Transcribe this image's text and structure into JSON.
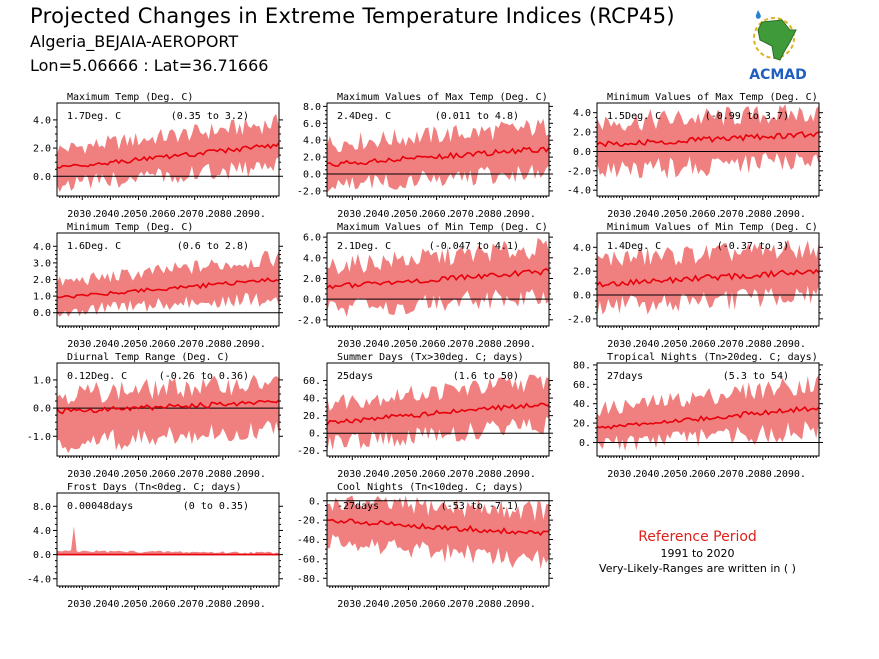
{
  "header": {
    "title": "Projected Changes in Extreme Temperature Indices (RCP45)",
    "station": "Algeria_BEJAIA-AEROPORT",
    "coords": "Lon=5.06666 : Lat=36.71666"
  },
  "logo": {
    "text": "ACMAD",
    "icon": "africa-map-logo"
  },
  "colors": {
    "band": "#f08080",
    "line": "#e8000b",
    "zero": "#000000",
    "ref_title": "#e0201b"
  },
  "reference": {
    "title": "Reference Period",
    "years": "1991 to 2020",
    "note": "Very-Likely-Ranges are written in ( )"
  },
  "chart_data": [
    {
      "type": "area",
      "title": "Maximum Temp (Deg. C)",
      "value_label": "1.7Deg. C",
      "range_label": "(0.35 to 3.2)",
      "ylim": [
        -1.4,
        5.2
      ],
      "yticks": [
        0,
        2,
        4
      ],
      "ytick_labels": [
        "0.0",
        "2.0",
        "4.0"
      ],
      "x_range": [
        2021,
        2100
      ],
      "xtick_labels": [
        "2030.",
        "2040.",
        "2050.",
        "2060.",
        "2070.",
        "2080.",
        "2090."
      ],
      "series": [
        {
          "mean": [
            0.6,
            2.2
          ],
          "low": [
            -0.6,
            0.7
          ],
          "high": [
            1.9,
            3.8
          ]
        }
      ]
    },
    {
      "type": "area",
      "title": "Maximum Values of Max Temp (Deg. C)",
      "value_label": "2.4Deg. C",
      "range_label": "(0.011 to 4.8)",
      "ylim": [
        -2.6,
        8.4
      ],
      "yticks": [
        -2,
        0,
        2,
        4,
        6,
        8
      ],
      "ytick_labels": [
        "-2.0",
        "0.0",
        "2.0",
        "4.0",
        "6.0",
        "8.0"
      ],
      "x_range": [
        2021,
        2100
      ],
      "xtick_labels": [
        "2030.",
        "2040.",
        "2050.",
        "2060.",
        "2070.",
        "2080.",
        "2090."
      ],
      "series": [
        {
          "mean": [
            1.1,
            3.0
          ],
          "low": [
            -1.4,
            0.2
          ],
          "high": [
            3.6,
            5.6
          ]
        }
      ]
    },
    {
      "type": "area",
      "title": "Minimum Values of Max Temp (Deg. C)",
      "value_label": "1.5Deg. C",
      "range_label": "(-0.99 to 3.7)",
      "ylim": [
        -4.6,
        5.0
      ],
      "yticks": [
        -4,
        -2,
        0,
        2,
        4
      ],
      "ytick_labels": [
        "-4.0",
        "-2.0",
        "0.0",
        "2.0",
        "4.0"
      ],
      "x_range": [
        2021,
        2100
      ],
      "xtick_labels": [
        "2030.",
        "2040.",
        "2050.",
        "2060.",
        "2070.",
        "2080.",
        "2090."
      ],
      "series": [
        {
          "mean": [
            0.7,
            1.8
          ],
          "low": [
            -2.2,
            -0.8
          ],
          "high": [
            3.0,
            4.0
          ]
        }
      ]
    },
    {
      "type": "area",
      "title": "Minimum Temp (Deg. C)",
      "value_label": "1.6Deg. C",
      "range_label": "(0.6 to 2.8)",
      "ylim": [
        -0.8,
        4.8
      ],
      "yticks": [
        0,
        1,
        2,
        3,
        4
      ],
      "ytick_labels": [
        "0.0",
        "1.0",
        "2.0",
        "3.0",
        "4.0"
      ],
      "x_range": [
        2021,
        2100
      ],
      "xtick_labels": [
        "2030.",
        "2040.",
        "2050.",
        "2060.",
        "2070.",
        "2080.",
        "2090."
      ],
      "series": [
        {
          "mean": [
            0.9,
            2.0
          ],
          "low": [
            0.1,
            0.9
          ],
          "high": [
            1.8,
            3.3
          ]
        }
      ]
    },
    {
      "type": "area",
      "title": "Maximum Values of Min Temp (Deg. C)",
      "value_label": "2.1Deg. C",
      "range_label": "(-0.047 to 4.1)",
      "ylim": [
        -2.6,
        6.4
      ],
      "yticks": [
        -2,
        0,
        2,
        4,
        6
      ],
      "ytick_labels": [
        "-2.0",
        "0.0",
        "2.0",
        "4.0",
        "6.0"
      ],
      "x_range": [
        2021,
        2100
      ],
      "xtick_labels": [
        "2030.",
        "2040.",
        "2050.",
        "2060.",
        "2070.",
        "2080.",
        "2090."
      ],
      "series": [
        {
          "mean": [
            1.2,
            2.7
          ],
          "low": [
            -1.0,
            0.3
          ],
          "high": [
            3.2,
            5.0
          ]
        }
      ]
    },
    {
      "type": "area",
      "title": "Minimum Values of Min Temp (Deg. C)",
      "value_label": "1.4Deg. C",
      "range_label": "(-0.37 to 3)",
      "ylim": [
        -2.6,
        5.2
      ],
      "yticks": [
        -2,
        0,
        2,
        4
      ],
      "ytick_labels": [
        "-2.0",
        "0.0",
        "2.0",
        "4.0"
      ],
      "x_range": [
        2021,
        2100
      ],
      "xtick_labels": [
        "2030.",
        "2040.",
        "2050.",
        "2060.",
        "2070.",
        "2080.",
        "2090."
      ],
      "series": [
        {
          "mean": [
            0.9,
            2.0
          ],
          "low": [
            -1.0,
            0.0
          ],
          "high": [
            3.0,
            3.9
          ]
        }
      ]
    },
    {
      "type": "area",
      "title": "Diurnal Temp Range (Deg. C)",
      "value_label": "0.12Deg. C",
      "range_label": "(-0.26 to 0.36)",
      "ylim": [
        -1.7,
        1.6
      ],
      "yticks": [
        -1,
        0,
        1
      ],
      "ytick_labels": [
        "-1.0",
        "0.0",
        "1.0"
      ],
      "x_range": [
        2021,
        2100
      ],
      "xtick_labels": [
        "2030.",
        "2040.",
        "2050.",
        "2060.",
        "2070.",
        "2080.",
        "2090."
      ],
      "series": [
        {
          "mean": [
            -0.1,
            0.2
          ],
          "low": [
            -1.3,
            -0.7
          ],
          "high": [
            0.5,
            0.9
          ]
        }
      ]
    },
    {
      "type": "area",
      "title": "Summer Days (Tx>30deg. C; days)",
      "value_label": "25days",
      "range_label": "(1.6 to 50)",
      "ylim": [
        -26,
        80
      ],
      "yticks": [
        -20,
        0,
        20,
        40,
        60
      ],
      "ytick_labels": [
        "-20.",
        "0.",
        "20.",
        "40.",
        "60."
      ],
      "x_range": [
        2021,
        2100
      ],
      "xtick_labels": [
        "2030.",
        "2040.",
        "2050.",
        "2060.",
        "2070.",
        "2080.",
        "2090."
      ],
      "series": [
        {
          "mean": [
            12,
            34
          ],
          "low": [
            -12,
            10
          ],
          "high": [
            35,
            60
          ]
        }
      ]
    },
    {
      "type": "area",
      "title": "Tropical Nights (Tn>20deg. C; days)",
      "value_label": "27days",
      "range_label": "(5.3 to 54)",
      "ylim": [
        -14,
        82
      ],
      "yticks": [
        0,
        20,
        40,
        60,
        80
      ],
      "ytick_labels": [
        "0.",
        "20.",
        "40.",
        "60.",
        "80."
      ],
      "x_range": [
        2021,
        2100
      ],
      "xtick_labels": [
        "2030.",
        "2040.",
        "2050.",
        "2060.",
        "2070.",
        "2080.",
        "2090."
      ],
      "series": [
        {
          "mean": [
            15,
            36
          ],
          "low": [
            -2,
            12
          ],
          "high": [
            34,
            62
          ]
        }
      ]
    },
    {
      "type": "area",
      "title": "Frost Days (Tn<0deg. C; days)",
      "value_label": "0.00048days",
      "range_label": "(0 to 0.35)",
      "ylim": [
        -5.2,
        10.2
      ],
      "yticks": [
        -4,
        0,
        4,
        8
      ],
      "ytick_labels": [
        "-4.0",
        "0.0",
        "4.0",
        "8.0"
      ],
      "x_range": [
        2021,
        2100
      ],
      "xtick_labels": [
        "2030.",
        "2040.",
        "2050.",
        "2060.",
        "2070.",
        "2080.",
        "2090."
      ],
      "series": [
        {
          "mean": [
            0,
            0
          ],
          "low": [
            0,
            0
          ],
          "high": [
            0.6,
            0.3
          ]
        }
      ]
    },
    {
      "type": "area",
      "title": "Cool Nights (Tn<10deg. C; days)",
      "value_label": "-27days",
      "range_label": "(-53 to -7.1)",
      "ylim": [
        -88,
        8
      ],
      "yticks": [
        -80,
        -60,
        -40,
        -20,
        0
      ],
      "ytick_labels": [
        "-80.",
        "-60.",
        "-40.",
        "-20.",
        "0."
      ],
      "x_range": [
        2021,
        2100
      ],
      "xtick_labels": [
        "2030.",
        "2040.",
        "2050.",
        "2060.",
        "2070.",
        "2080.",
        "2090."
      ],
      "series": [
        {
          "mean": [
            -20,
            -34
          ],
          "low": [
            -42,
            -64
          ],
          "high": [
            -2,
            -10
          ]
        }
      ]
    }
  ]
}
